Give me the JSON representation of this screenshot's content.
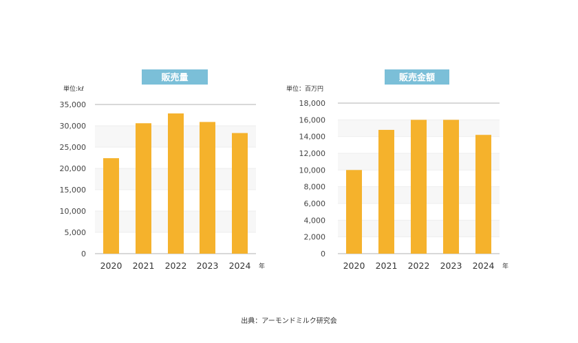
{
  "chart_data": [
    {
      "type": "bar",
      "title": "販売量",
      "unit_label": "単位:kℓ",
      "xlabel": "年",
      "categories": [
        "2020",
        "2021",
        "2022",
        "2023",
        "2024"
      ],
      "values": [
        22400,
        30600,
        32900,
        30900,
        28300
      ],
      "ylim": [
        0,
        35000
      ],
      "yticks": [
        0,
        5000,
        10000,
        15000,
        20000,
        25000,
        30000,
        35000
      ],
      "ytick_labels": [
        "0",
        "5,000",
        "10,000",
        "15,000",
        "20,000",
        "25,000",
        "30,000",
        "35,000"
      ],
      "grid": true
    },
    {
      "type": "bar",
      "title": "販売金額",
      "unit_label": "単位：百万円",
      "xlabel": "年",
      "categories": [
        "2020",
        "2021",
        "2022",
        "2023",
        "2024"
      ],
      "values": [
        10000,
        14800,
        16000,
        16000,
        14200
      ],
      "ylim": [
        0,
        18000
      ],
      "yticks": [
        0,
        2000,
        4000,
        6000,
        8000,
        10000,
        12000,
        14000,
        16000,
        18000
      ],
      "ytick_labels": [
        "0",
        "2,000",
        "4,000",
        "6,000",
        "8,000",
        "10,000",
        "12,000",
        "14,000",
        "16,000",
        "18,000"
      ],
      "grid": true
    }
  ],
  "colors": {
    "bar": "#f5b22c",
    "title_bg": "#7bbfd8",
    "band": "#f7f7f7"
  },
  "source": "出典：アーモンドミルク研究会"
}
